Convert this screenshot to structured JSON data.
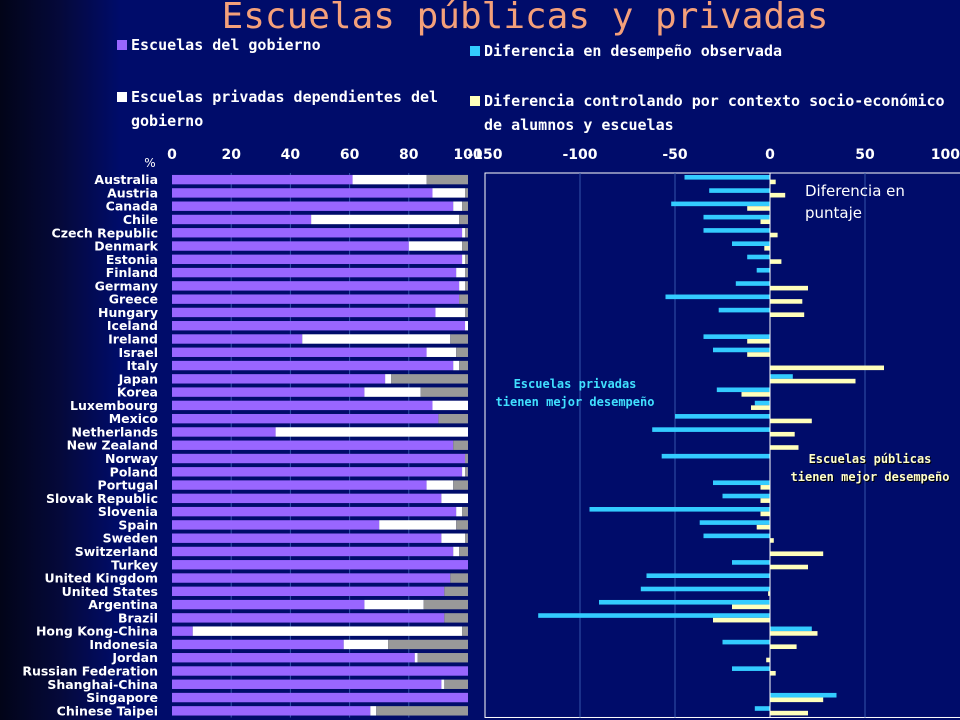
{
  "title": "Escuelas públicas y privadas",
  "legend": {
    "government": "Escuelas del gobierno",
    "private_dependent": "Escuelas privadas dependientes del gobierno",
    "observed_difference": "Diferencia en desempeño observada",
    "controlled_difference": "Diferencia controlando por contexto socio-económico de alumnos y escuelas"
  },
  "colors": {
    "government": "#9966ff",
    "private_dependent": "#ffffff",
    "private_independent": "#999999",
    "observed": "#33ccff",
    "controlled": "#ffffbb",
    "panel_bg": "#000c6a"
  },
  "panel_note": "Diferencia en puntaje",
  "annotations": {
    "private_better": "Escuelas privadas tienen mejor desempeño",
    "public_better": "Escuelas públicas tienen mejor desempeño"
  },
  "chart_data": [
    {
      "type": "bar",
      "orientation": "horizontal",
      "stacked": true,
      "ylabel": "%",
      "xlim": [
        0,
        100
      ],
      "xticks": [
        "0",
        "20",
        "40",
        "60",
        "80",
        "100"
      ],
      "categories": [
        "Australia",
        "Austria",
        "Canada",
        "Chile",
        "Czech Republic",
        "Denmark",
        "Estonia",
        "Finland",
        "Germany",
        "Greece",
        "Hungary",
        "Iceland",
        "Ireland",
        "Israel",
        "Italy",
        "Japan",
        "Korea",
        "Luxembourg",
        "Mexico",
        "Netherlands",
        "New Zealand",
        "Norway",
        "Poland",
        "Portugal",
        "Slovak Republic",
        "Slovenia",
        "Spain",
        "Sweden",
        "Switzerland",
        "Turkey",
        "United Kingdom",
        "United States",
        "Argentina",
        "Brazil",
        "Hong Kong-China",
        "Indonesia",
        "Jordan",
        "Russian Federation",
        "Shanghai-China",
        "Singapore",
        "Chinese Taipei"
      ],
      "series": [
        {
          "name": "Escuelas del gobierno",
          "values": [
            61,
            88,
            95,
            47,
            98,
            80,
            98,
            96,
            97,
            97,
            89,
            99,
            44,
            86,
            95,
            72,
            65,
            88,
            90,
            35,
            95,
            99,
            98,
            86,
            91,
            96,
            70,
            91,
            95,
            100,
            94,
            92,
            65,
            92,
            7,
            58,
            82,
            100,
            91,
            100,
            67
          ]
        },
        {
          "name": "Escuelas privadas dependientes del gobierno",
          "values": [
            25,
            11,
            3,
            50,
            1,
            18,
            1,
            3,
            2,
            0,
            10,
            1,
            50,
            10,
            2,
            2,
            19,
            12,
            0,
            65,
            0,
            0,
            1,
            9,
            9,
            2,
            26,
            8,
            2,
            0,
            0,
            0,
            20,
            0,
            91,
            15,
            1,
            0,
            1,
            0,
            2
          ]
        }
      ]
    },
    {
      "type": "bar",
      "orientation": "horizontal",
      "xlabel": "Diferencia en puntaje",
      "xlim": [
        -150,
        100
      ],
      "xticks": [
        "-150",
        "-100",
        "-50",
        "0",
        "50",
        "100"
      ],
      "categories": [
        "Australia",
        "Austria",
        "Canada",
        "Chile",
        "Czech Republic",
        "Denmark",
        "Estonia",
        "Finland",
        "Germany",
        "Greece",
        "Hungary",
        "Iceland",
        "Ireland",
        "Israel",
        "Italy",
        "Japan",
        "Korea",
        "Luxembourg",
        "Mexico",
        "Netherlands",
        "New Zealand",
        "Norway",
        "Poland",
        "Portugal",
        "Slovak Republic",
        "Slovenia",
        "Spain",
        "Sweden",
        "Switzerland",
        "Turkey",
        "United Kingdom",
        "United States",
        "Argentina",
        "Brazil",
        "Hong Kong-China",
        "Indonesia",
        "Jordan",
        "Russian Federation",
        "Shanghai-China",
        "Singapore",
        "Chinese Taipei"
      ],
      "series": [
        {
          "name": "Diferencia en desempeño observada",
          "values": [
            -45,
            -32,
            -52,
            -35,
            -35,
            -20,
            -12,
            -7,
            -18,
            -55,
            -27,
            0,
            -35,
            -30,
            0,
            12,
            -28,
            -8,
            -50,
            -62,
            0,
            -57,
            0,
            -30,
            -25,
            -95,
            -37,
            -35,
            0,
            -20,
            -65,
            -68,
            -90,
            -122,
            22,
            -25,
            0,
            -20,
            0,
            35,
            -8
          ]
        },
        {
          "name": "Diferencia controlando por contexto socio-económico de alumnos y escuelas",
          "values": [
            3,
            8,
            -12,
            -5,
            4,
            -3,
            6,
            0,
            20,
            17,
            18,
            0,
            -12,
            -12,
            60,
            45,
            -15,
            -10,
            22,
            13,
            15,
            0,
            0,
            -5,
            -5,
            -5,
            -7,
            2,
            28,
            20,
            0,
            -1,
            -20,
            -30,
            25,
            14,
            -2,
            3,
            0,
            28,
            20
          ]
        }
      ]
    }
  ]
}
